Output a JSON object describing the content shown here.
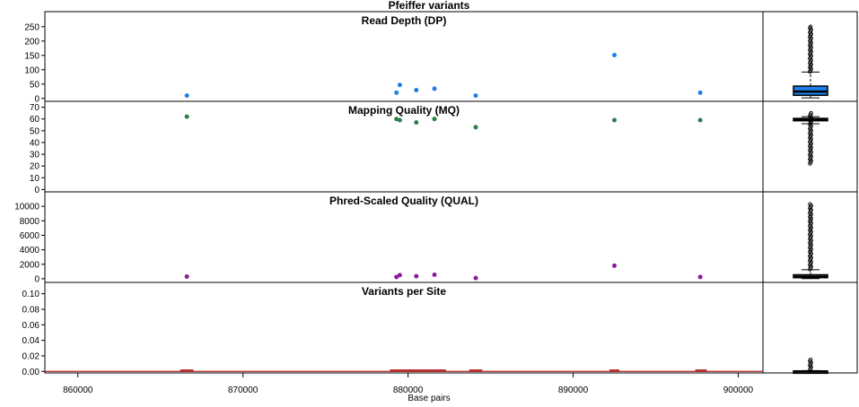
{
  "chart_data": {
    "type": "scatter",
    "title": "Pfeiffer variants",
    "xlabel": "Base pairs",
    "xlim": [
      858000,
      901500
    ],
    "x_ticks": [
      860000,
      870000,
      880000,
      890000,
      900000
    ],
    "x_tick_labels": [
      "860000",
      "870000",
      "880000",
      "890000",
      "900000"
    ],
    "panels": [
      {
        "key": "dp",
        "title": "Read Depth (DP)",
        "color": "#1e7fe8",
        "mark": "point",
        "ylim": [
          -10,
          290
        ],
        "y_ticks": [
          0,
          50,
          100,
          150,
          200,
          250
        ],
        "y_tick_labels": [
          "0",
          "50",
          "100",
          "150",
          "200",
          "250"
        ],
        "points": [
          {
            "x": 866600,
            "y": 10
          },
          {
            "x": 879300,
            "y": 20
          },
          {
            "x": 879500,
            "y": 47
          },
          {
            "x": 880500,
            "y": 29
          },
          {
            "x": 881600,
            "y": 34
          },
          {
            "x": 884100,
            "y": 10
          },
          {
            "x": 892500,
            "y": 151
          },
          {
            "x": 897700,
            "y": 20
          }
        ],
        "box": {
          "whisker_low": 2,
          "q1": 11,
          "median": 24,
          "q3": 43,
          "whisker_high": 92,
          "outlier_min": 93,
          "outlier_max": 250
        }
      },
      {
        "key": "mq",
        "title": "Mapping Quality (MQ)",
        "color": "#2e7d4a",
        "mark": "point",
        "ylim": [
          -2,
          72
        ],
        "y_ticks": [
          0,
          10,
          20,
          30,
          40,
          50,
          60,
          70
        ],
        "y_tick_labels": [
          "0",
          "10",
          "20",
          "30",
          "40",
          "50",
          "60",
          "70"
        ],
        "points": [
          {
            "x": 866600,
            "y": 62
          },
          {
            "x": 879300,
            "y": 60
          },
          {
            "x": 879500,
            "y": 59
          },
          {
            "x": 880500,
            "y": 57
          },
          {
            "x": 881600,
            "y": 60
          },
          {
            "x": 884100,
            "y": 53
          },
          {
            "x": 892500,
            "y": 59
          },
          {
            "x": 897700,
            "y": 59
          }
        ],
        "box": {
          "whisker_low": 56,
          "q1": 58.5,
          "median": 59.5,
          "q3": 60.5,
          "whisker_high": 62,
          "outlier_min": 22,
          "outlier_max": 65
        }
      },
      {
        "key": "qual",
        "title": "Phred-Scaled Quality (QUAL)",
        "color": "#8b1a9a",
        "mark": "point",
        "ylim": [
          -500,
          11500
        ],
        "y_ticks": [
          0,
          2000,
          4000,
          6000,
          8000,
          10000
        ],
        "y_tick_labels": [
          "0",
          "2000",
          "4000",
          "6000",
          "8000",
          "10000"
        ],
        "points": [
          {
            "x": 866600,
            "y": 300
          },
          {
            "x": 879300,
            "y": 250
          },
          {
            "x": 879500,
            "y": 500
          },
          {
            "x": 880500,
            "y": 350
          },
          {
            "x": 881600,
            "y": 550
          },
          {
            "x": 884100,
            "y": 100
          },
          {
            "x": 892500,
            "y": 1800
          },
          {
            "x": 897700,
            "y": 250
          }
        ],
        "box": {
          "whisker_low": 30,
          "q1": 150,
          "median": 300,
          "q3": 550,
          "whisker_high": 1250,
          "outlier_min": 1300,
          "outlier_max": 10300
        }
      },
      {
        "key": "vps",
        "title": "Variants per Site",
        "color": "#b22222",
        "mark": "line",
        "ylim": [
          -0.002,
          0.11
        ],
        "y_ticks": [
          0.0,
          0.02,
          0.04,
          0.06,
          0.08,
          0.1
        ],
        "y_tick_labels": [
          "0.00",
          "0.02",
          "0.04",
          "0.06",
          "0.08",
          "0.10"
        ],
        "segments": [
          {
            "x0": 866200,
            "x1": 867000,
            "y": 0.001
          },
          {
            "x0": 878900,
            "x1": 882300,
            "y": 0.001
          },
          {
            "x0": 883700,
            "x1": 884500,
            "y": 0.001
          },
          {
            "x0": 892200,
            "x1": 892800,
            "y": 0.001
          },
          {
            "x0": 897400,
            "x1": 898100,
            "y": 0.001
          }
        ],
        "box": {
          "whisker_low": 0,
          "q1": 0,
          "median": 0,
          "q3": 0.0005,
          "whisker_high": 0.001,
          "outlier_min": 0.002,
          "outlier_max": 0.015
        }
      }
    ]
  }
}
